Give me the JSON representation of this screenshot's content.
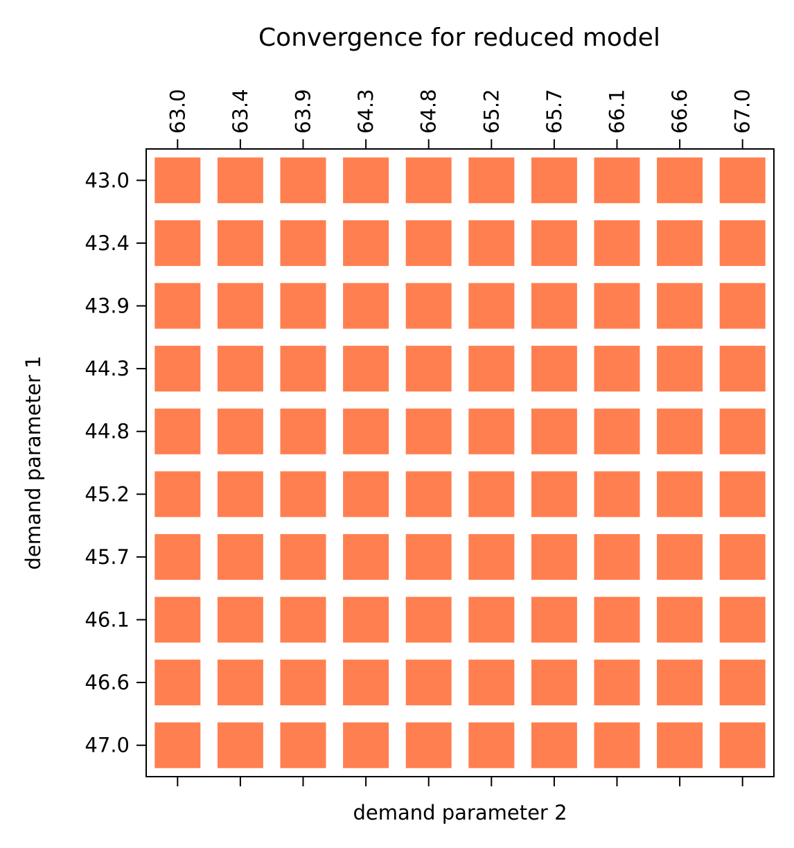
{
  "chart_data": {
    "type": "heatmap",
    "title": "Convergence for reduced model",
    "xlabel": "demand parameter 2",
    "ylabel": "demand parameter 1",
    "x_ticks": [
      "63.0",
      "63.4",
      "63.9",
      "64.3",
      "64.8",
      "65.2",
      "65.7",
      "66.1",
      "66.6",
      "67.0"
    ],
    "y_ticks": [
      "43.0",
      "43.4",
      "43.9",
      "44.3",
      "44.8",
      "45.2",
      "45.7",
      "46.1",
      "46.6",
      "47.0"
    ],
    "x_tick_position": "top",
    "grid": false,
    "legend": "none",
    "cell_color": "#ff7f50",
    "values": [
      [
        1,
        1,
        1,
        1,
        1,
        1,
        1,
        1,
        1,
        1
      ],
      [
        1,
        1,
        1,
        1,
        1,
        1,
        1,
        1,
        1,
        1
      ],
      [
        1,
        1,
        1,
        1,
        1,
        1,
        1,
        1,
        1,
        1
      ],
      [
        1,
        1,
        1,
        1,
        1,
        1,
        1,
        1,
        1,
        1
      ],
      [
        1,
        1,
        1,
        1,
        1,
        1,
        1,
        1,
        1,
        1
      ],
      [
        1,
        1,
        1,
        1,
        1,
        1,
        1,
        1,
        1,
        1
      ],
      [
        1,
        1,
        1,
        1,
        1,
        1,
        1,
        1,
        1,
        1
      ],
      [
        1,
        1,
        1,
        1,
        1,
        1,
        1,
        1,
        1,
        1
      ],
      [
        1,
        1,
        1,
        1,
        1,
        1,
        1,
        1,
        1,
        1
      ],
      [
        1,
        1,
        1,
        1,
        1,
        1,
        1,
        1,
        1,
        1
      ]
    ]
  }
}
